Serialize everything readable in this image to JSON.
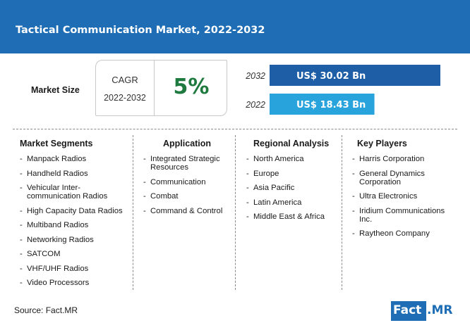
{
  "header": {
    "title": "Tactical Communication Market, 2022-2032"
  },
  "market_size": {
    "label": "Market Size",
    "cagr_label": "CAGR",
    "cagr_period": "2022-2032",
    "cagr_value": "5%"
  },
  "chart_data": {
    "type": "bar",
    "orientation": "horizontal",
    "categories": [
      "2032",
      "2022"
    ],
    "values": [
      30.02,
      18.43
    ],
    "value_labels": [
      "US$ 30.02 Bn",
      "US$ 18.43 Bn"
    ],
    "unit": "US$ Bn",
    "colors": [
      "#1e5ea6",
      "#29a3dc"
    ],
    "xlim": [
      0,
      30.02
    ]
  },
  "columns": [
    {
      "title": "Market Segments",
      "items": [
        "Manpack Radios",
        "Handheld Radios",
        "Vehicular Inter-\ncommunication Radios",
        "High Capacity Data Radios",
        "Multiband Radios",
        "Networking Radios",
        "SATCOM",
        "VHF/UHF Radios",
        "Video Processors"
      ]
    },
    {
      "title": "Application",
      "items": [
        "Integrated Strategic\nResources",
        "Communication",
        "Combat",
        "Command & Control"
      ]
    },
    {
      "title": "Regional Analysis",
      "items": [
        "North America",
        "Europe",
        "Asia Pacific",
        "Latin America",
        "Middle East & Africa"
      ]
    },
    {
      "title": "Key Players",
      "items": [
        "Harris Corporation",
        "General Dynamics\nCorporation",
        "Ultra Electronics",
        "Iridium Communications\nInc.",
        "Raytheon Company"
      ]
    }
  ],
  "footer": {
    "source": "Source: Fact.MR",
    "logo_part1": "Fact",
    "logo_part2": ".MR"
  },
  "colors": {
    "brand_blue": "#1e6db5",
    "cagr_green": "#1e7a3e"
  }
}
